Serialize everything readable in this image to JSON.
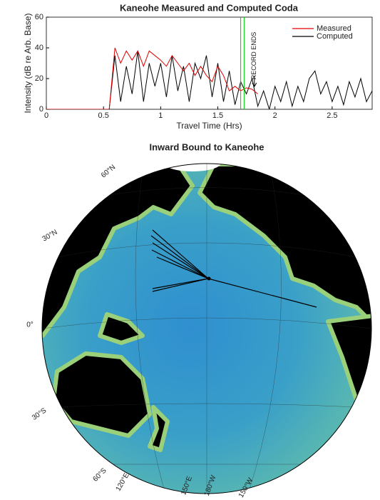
{
  "chart_data": [
    {
      "type": "line",
      "title": "Kaneohe Measured and Computed Coda",
      "x_label": "Travel Time (Hrs)",
      "y_label": "Intensity (dB re Arb. Base)",
      "x": [
        0,
        0.05,
        0.1,
        0.15,
        0.2,
        0.25,
        0.3,
        0.35,
        0.4,
        0.45,
        0.5,
        0.55,
        0.6,
        0.65,
        0.7,
        0.75,
        0.8,
        0.85,
        0.9,
        0.95,
        1.0,
        1.05,
        1.1,
        1.15,
        1.2,
        1.25,
        1.3,
        1.35,
        1.4,
        1.45,
        1.5,
        1.55,
        1.6,
        1.65,
        1.7,
        1.75,
        1.8,
        1.85,
        1.9,
        1.95,
        2.0,
        2.05,
        2.1,
        2.15,
        2.2,
        2.25,
        2.3,
        2.35,
        2.4,
        2.45,
        2.5,
        2.55,
        2.6,
        2.65,
        2.7,
        2.75,
        2.8,
        2.85
      ],
      "series": [
        {
          "name": "Measured",
          "color": "#e00000",
          "values": [
            0,
            0,
            0,
            0,
            0,
            0,
            0,
            0,
            0,
            0,
            0,
            0,
            40,
            30,
            38,
            32,
            38,
            28,
            38,
            35,
            32,
            28,
            35,
            30,
            25,
            30,
            22,
            28,
            22,
            18,
            28,
            22,
            12,
            15,
            12,
            14,
            13,
            10,
            null,
            null,
            null,
            null,
            null,
            null,
            null,
            null,
            null,
            null,
            null,
            null,
            null,
            null,
            null,
            null,
            null,
            null,
            null,
            null
          ]
        },
        {
          "name": "Computed",
          "color": "#000000",
          "values": [
            0,
            0,
            0,
            0,
            0,
            0,
            0,
            0,
            0,
            0,
            0,
            0,
            35,
            5,
            28,
            10,
            38,
            5,
            30,
            15,
            30,
            8,
            35,
            12,
            28,
            5,
            30,
            20,
            35,
            8,
            30,
            5,
            25,
            3,
            18,
            10,
            20,
            2,
            12,
            0,
            15,
            5,
            18,
            2,
            15,
            5,
            20,
            25,
            10,
            18,
            5,
            15,
            3,
            18,
            8,
            20,
            5,
            12
          ]
        }
      ],
      "markers": [
        {
          "x": 1.7,
          "color": "#00cc00"
        },
        {
          "x": 1.73,
          "color": "#00cc00"
        }
      ],
      "annotation": {
        "text": "RECORD ENDS",
        "x": 1.82
      },
      "xlim": [
        0,
        2.85
      ],
      "xticks": [
        0,
        0.5,
        1,
        1.5,
        2,
        2.5
      ],
      "ylim": [
        0,
        60
      ],
      "yticks": [
        0,
        20,
        40,
        60
      ],
      "legend": "upper right"
    },
    {
      "type": "map",
      "title": "Inward Bound to Kaneohe",
      "lat_labels": [
        "60°N",
        "30°N",
        "0°",
        "30°S",
        "60°S"
      ],
      "lon_labels": [
        "120°E",
        "150°E",
        "180°W",
        "150°W"
      ]
    }
  ]
}
